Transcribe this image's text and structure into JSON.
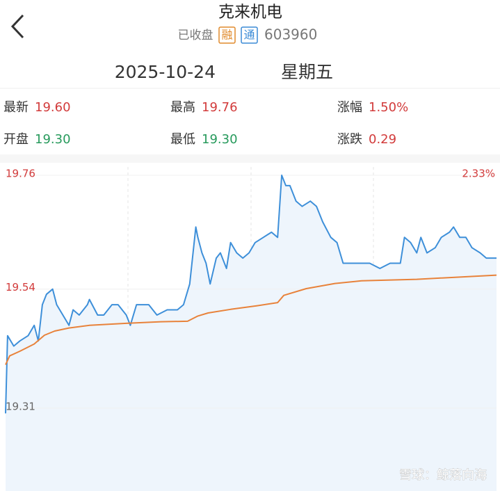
{
  "header": {
    "title": "克来机电",
    "status": "已收盘",
    "badges": [
      {
        "text": "融",
        "color": "#e08a2c"
      },
      {
        "text": "通",
        "color": "#3a8ad6"
      }
    ],
    "code": "603960",
    "date": "2025-10-24",
    "weekday": "星期五"
  },
  "quote": {
    "rows": [
      [
        {
          "label": "最新",
          "value": "19.60",
          "color": "#d23b3b"
        },
        {
          "label": "最高",
          "value": "19.76",
          "color": "#d23b3b"
        },
        {
          "label": "涨幅",
          "value": "1.50%",
          "color": "#d23b3b"
        }
      ],
      [
        {
          "label": "开盘",
          "value": "19.30",
          "color": "#279a5c"
        },
        {
          "label": "最低",
          "value": "19.30",
          "color": "#279a5c"
        },
        {
          "label": "涨跌",
          "value": "0.29",
          "color": "#d23b3b"
        }
      ]
    ]
  },
  "chart_data": {
    "type": "line",
    "annotation": "2.33%",
    "annotation_color": "#d23b3b",
    "ylim": [
      19.15,
      19.76
    ],
    "yticks": [
      19.76,
      19.54,
      19.31
    ],
    "ytick_colors": [
      "#d23b3b",
      "#d23b3b",
      "#666666"
    ],
    "xlim": [
      0,
      240
    ],
    "series": [
      {
        "color": "#3d8fd9",
        "fill": "#eef5fc",
        "x": [
          0,
          1,
          4,
          7,
          11,
          14,
          16,
          18,
          20,
          23,
          25,
          28,
          31,
          33,
          36,
          40,
          41,
          45,
          48,
          52,
          55,
          59,
          61,
          64,
          67,
          70,
          74,
          79,
          84,
          87,
          90,
          93,
          94,
          96,
          98,
          100,
          103,
          105,
          108,
          110,
          113,
          116,
          119,
          122,
          126,
          130,
          133,
          135,
          137,
          139,
          142,
          145,
          149,
          152,
          155,
          159,
          162,
          165,
          167,
          171,
          174,
          178,
          183,
          188,
          193,
          195,
          198,
          201,
          203,
          206,
          210,
          213,
          217,
          219,
          222,
          225,
          228,
          232,
          235,
          240
        ],
        "values": [
          19.3,
          19.45,
          19.43,
          19.44,
          19.45,
          19.47,
          19.44,
          19.51,
          19.53,
          19.54,
          19.51,
          19.49,
          19.47,
          19.5,
          19.49,
          19.51,
          19.52,
          19.49,
          19.49,
          19.51,
          19.51,
          19.49,
          19.47,
          19.51,
          19.51,
          19.51,
          19.49,
          19.5,
          19.5,
          19.51,
          19.55,
          19.66,
          19.64,
          19.61,
          19.59,
          19.55,
          19.6,
          19.61,
          19.58,
          19.63,
          19.61,
          19.6,
          19.61,
          19.63,
          19.64,
          19.65,
          19.64,
          19.76,
          19.74,
          19.74,
          19.71,
          19.7,
          19.71,
          19.7,
          19.67,
          19.64,
          19.63,
          19.59,
          19.59,
          19.59,
          19.59,
          19.59,
          19.58,
          19.59,
          19.59,
          19.64,
          19.63,
          19.61,
          19.64,
          19.61,
          19.62,
          19.64,
          19.65,
          19.66,
          19.64,
          19.64,
          19.62,
          19.61,
          19.6,
          19.6
        ]
      },
      {
        "color": "#e8823a",
        "x": [
          0,
          2,
          7,
          14,
          19,
          24,
          31,
          41,
          59,
          76,
          89,
          94,
          99,
          110,
          123,
          133,
          136,
          147,
          161,
          174,
          201,
          240
        ],
        "values": [
          19.394,
          19.411,
          19.42,
          19.434,
          19.451,
          19.459,
          19.465,
          19.47,
          19.474,
          19.477,
          19.478,
          19.488,
          19.494,
          19.501,
          19.508,
          19.514,
          19.528,
          19.541,
          19.551,
          19.556,
          19.559,
          19.567
        ]
      }
    ]
  },
  "watermark": "雪球：鲸落向海"
}
